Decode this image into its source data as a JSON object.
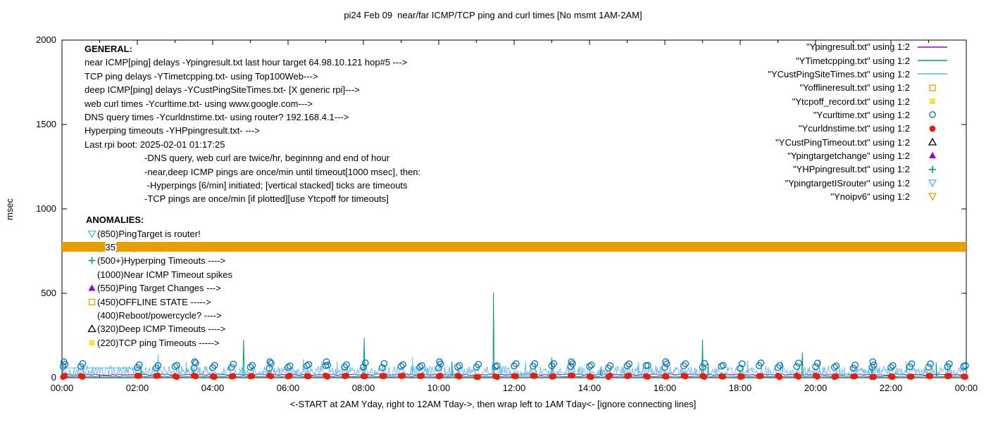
{
  "general": {
    "header": "GENERAL:",
    "lines": [
      {
        "text": "near ICMP[ping] delays -Ypingresult.txt last hour target 64.98.10.121 hop#5 --->",
        "indent": 0
      },
      {
        "text": "TCP ping delays -YTimetcpping.txt- using Top100Web--->",
        "indent": 0
      },
      {
        "text": "deep ICMP[ping] delays -YCustPingSiteTimes.txt- [X generic rpi]--->",
        "indent": 0
      },
      {
        "text": "web curl times -Ycurltime.txt- using www.google.com--->",
        "indent": 0
      },
      {
        "text": "DNS query times -Ycurldnstime.txt- using router? 192.168.4.1--->",
        "indent": 0
      },
      {
        "text": "Hyperping timeouts -YHPpingresult.txt- --->",
        "indent": 0
      },
      {
        "text": "Last rpi boot: 2025-02-01 01:17:25",
        "indent": 0
      },
      {
        "text": "-DNS query, web curl are twice/hr, beginnng and end of hour",
        "indent": 1
      },
      {
        "text": "-near,deep ICMP pings are once/min until timeout[1000 msec], then:",
        "indent": 1
      },
      {
        "text": " -Hyperpings [6/min] initiated; [vertical stacked] ticks are timeouts",
        "indent": 1
      },
      {
        "text": "-TCP pings are once/min [if plotted][use Ytcpoff for timeouts]",
        "indent": 1
      }
    ]
  },
  "anomalies": {
    "header": "ANOMALIES:",
    "items": [
      {
        "marker": "triangle-down-open",
        "color": "#56b4e9",
        "text": "(850)PingTarget is router!"
      },
      {
        "marker": "triangle-down-open",
        "color": "#56b4e9",
        "text": "(735)no ipv6 found ---->"
      },
      {
        "marker": "plus",
        "color": "#009e73",
        "text": "(500+)Hyperping Timeouts ---->"
      },
      {
        "marker": "none",
        "color": "#000000",
        "text": "(1000)Near ICMP Timeout spikes"
      },
      {
        "marker": "triangle-up-filled",
        "color": "#9400d3",
        "text": "(550)Ping Target Changes --->"
      },
      {
        "marker": "square-open",
        "color": "#e69f00",
        "text": "(450)OFFLINE STATE ----->"
      },
      {
        "marker": "none",
        "color": "#000000",
        "text": "(400)Reboot/powercycle? ---->"
      },
      {
        "marker": "triangle-up-open",
        "color": "#000000",
        "text": "(320)Deep ICMP Timeouts ---->"
      },
      {
        "marker": "square-filled",
        "color": "#f0e442",
        "text": "(220)TCP ping Timeouts ----->"
      }
    ]
  },
  "legend": {
    "entries": [
      {
        "label": "\"Ypingresult.txt\" using 1:2",
        "marker": "line",
        "color": "#9400d3"
      },
      {
        "label": "\"YTimetcpping.txt\" using 1:2",
        "marker": "line",
        "color": "#009e73"
      },
      {
        "label": "\"YCustPingSiteTimes.txt\" using 1:2",
        "marker": "line",
        "color": "#56b4e9"
      },
      {
        "label": "\"Yofflineresult.txt\" using 1:2",
        "marker": "square-open",
        "color": "#e69f00"
      },
      {
        "label": "\"Ytcpoff_record.txt\" using 1:2",
        "marker": "square-filled",
        "color": "#f0e442"
      },
      {
        "label": "\"Ycurltime.txt\" using 1:2",
        "marker": "circle-open",
        "color": "#0072b2"
      },
      {
        "label": "\"Ycurldnstime.txt\" using 1:2",
        "marker": "circle-filled",
        "color": "#e51e10"
      },
      {
        "label": "\"YCustPingTimeout.txt\" using 1:2",
        "marker": "triangle-up-open",
        "color": "#000000"
      },
      {
        "label": "\"Ypingtargetchange\" using 1:2",
        "marker": "triangle-up-filled",
        "color": "#9400d3"
      },
      {
        "label": "\"YHPpingresult.txt\" using 1:2",
        "marker": "plus",
        "color": "#009e73"
      },
      {
        "label": "\"YpingtargetISrouter\" using 1:2",
        "marker": "triangle-down-open",
        "color": "#56b4e9"
      },
      {
        "label": "\"Ynoipv6\" using 1:2",
        "marker": "triangle-down-open",
        "color": "#e69f00"
      }
    ]
  },
  "chart_data": {
    "type": "line",
    "title": "pi24 Feb 09  near/far ICMP/TCP ping and curl times [No msmt 1AM-2AM]",
    "xlabel": "<-START at 2AM Yday, right to 12AM Tday->, then wrap left to 1AM Tday<- [ignore connecting lines]",
    "ylabel": "msec",
    "xlim_hours": [
      0,
      24
    ],
    "ylim": [
      0,
      2000
    ],
    "grid": false,
    "legend_position": "top-right",
    "ytick_values": [
      0,
      500,
      1000,
      1500,
      2000
    ],
    "xtick_hours": [
      0,
      2,
      4,
      6,
      8,
      10,
      12,
      14,
      16,
      18,
      20,
      22,
      24
    ],
    "xtick_labels": [
      "00:00",
      "02:00",
      "04:00",
      "06:00",
      "08:00",
      "10:00",
      "12:00",
      "14:00",
      "16:00",
      "18:00",
      "20:00",
      "22:00",
      "00:00"
    ],
    "no_measurement_window": "1AM-2AM",
    "measurement_slots_hours": [
      0.03,
      0.5,
      2.0,
      2.5,
      3.0,
      3.5,
      4.0,
      4.5,
      5.0,
      5.5,
      6.0,
      6.5,
      7.0,
      7.5,
      8.0,
      8.5,
      9.0,
      9.5,
      10.0,
      10.5,
      11.0,
      11.5,
      12.0,
      12.5,
      13.0,
      13.5,
      14.0,
      14.5,
      15.0,
      15.5,
      16.0,
      16.5,
      17.0,
      17.5,
      18.0,
      18.5,
      19.0,
      19.5,
      20.0,
      20.5,
      21.0,
      21.5,
      22.0,
      22.5,
      23.0,
      23.5,
      23.93
    ],
    "series": [
      {
        "name": "Ypingresult.txt",
        "render": "flatline",
        "color": "#9400d3",
        "width": 1,
        "baseline_msec": 18,
        "jitter_msec": 4,
        "spikes": []
      },
      {
        "name": "YTimetcpping.txt",
        "render": "flatline",
        "color": "#009e73",
        "width": 1,
        "baseline_msec": 8,
        "jitter_msec": 2,
        "spikes": [
          [
            2.1,
            60
          ],
          [
            4.82,
            225
          ],
          [
            8.02,
            235
          ],
          [
            10.35,
            95
          ],
          [
            11.45,
            505
          ],
          [
            13.0,
            120
          ],
          [
            14.3,
            60
          ],
          [
            17.0,
            225
          ],
          [
            17.15,
            85
          ],
          [
            19.65,
            150
          ],
          [
            21.5,
            70
          ],
          [
            23.2,
            90
          ]
        ]
      },
      {
        "name": "YCustPingSiteTimes.txt",
        "render": "noise",
        "color": "#56b4e9",
        "width": 0.8,
        "base_min_msec": 15,
        "base_max_msec": 70,
        "spikes": [
          [
            2.55,
            140
          ],
          [
            3.3,
            95
          ],
          [
            5.5,
            95
          ],
          [
            6.4,
            110
          ],
          [
            7.3,
            95
          ],
          [
            9.3,
            120
          ],
          [
            12.3,
            100
          ],
          [
            15.3,
            95
          ],
          [
            18.2,
            100
          ],
          [
            20.1,
            110
          ],
          [
            22.4,
            95
          ],
          [
            23.5,
            85
          ]
        ]
      },
      {
        "name": "YCustPingSiteTimes wrap segment",
        "render": "segment",
        "color": "#56b4e9",
        "width": 1,
        "y_msec": 58,
        "from_hour": 0,
        "to_hour": 2.1
      },
      {
        "name": "Ycurltime.txt",
        "render": "circles",
        "color": "#0072b2",
        "y_min_msec": 52,
        "y_max_msec": 88
      },
      {
        "name": "Ycurldnstime.txt",
        "render": "dots",
        "color": "#e51e10",
        "y_min_msec": 4,
        "y_max_msec": 13
      },
      {
        "name": "Ynoipv6",
        "render": "band",
        "color": "#e69f00",
        "y_center_msec": 775,
        "band_halfheight_msec": 29,
        "segments_hours": [
          [
            0,
            1.15
          ],
          [
            1.45,
            24
          ]
        ]
      }
    ]
  }
}
